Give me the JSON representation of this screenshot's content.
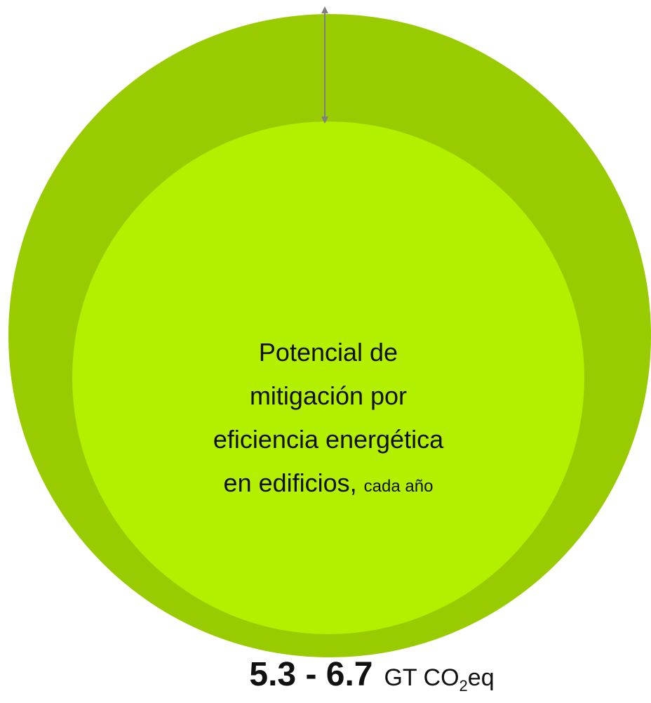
{
  "diagram": {
    "inner_label": {
      "lines": [
        "Potencial de",
        "mitigación por",
        "eficiencia energética",
        "en edificios,"
      ],
      "suffix": "cada año"
    },
    "value_label": {
      "range": "5.3 - 6.7",
      "unit_prefix": "GT CO",
      "unit_subscript": "2",
      "unit_suffix": "eq"
    }
  }
}
